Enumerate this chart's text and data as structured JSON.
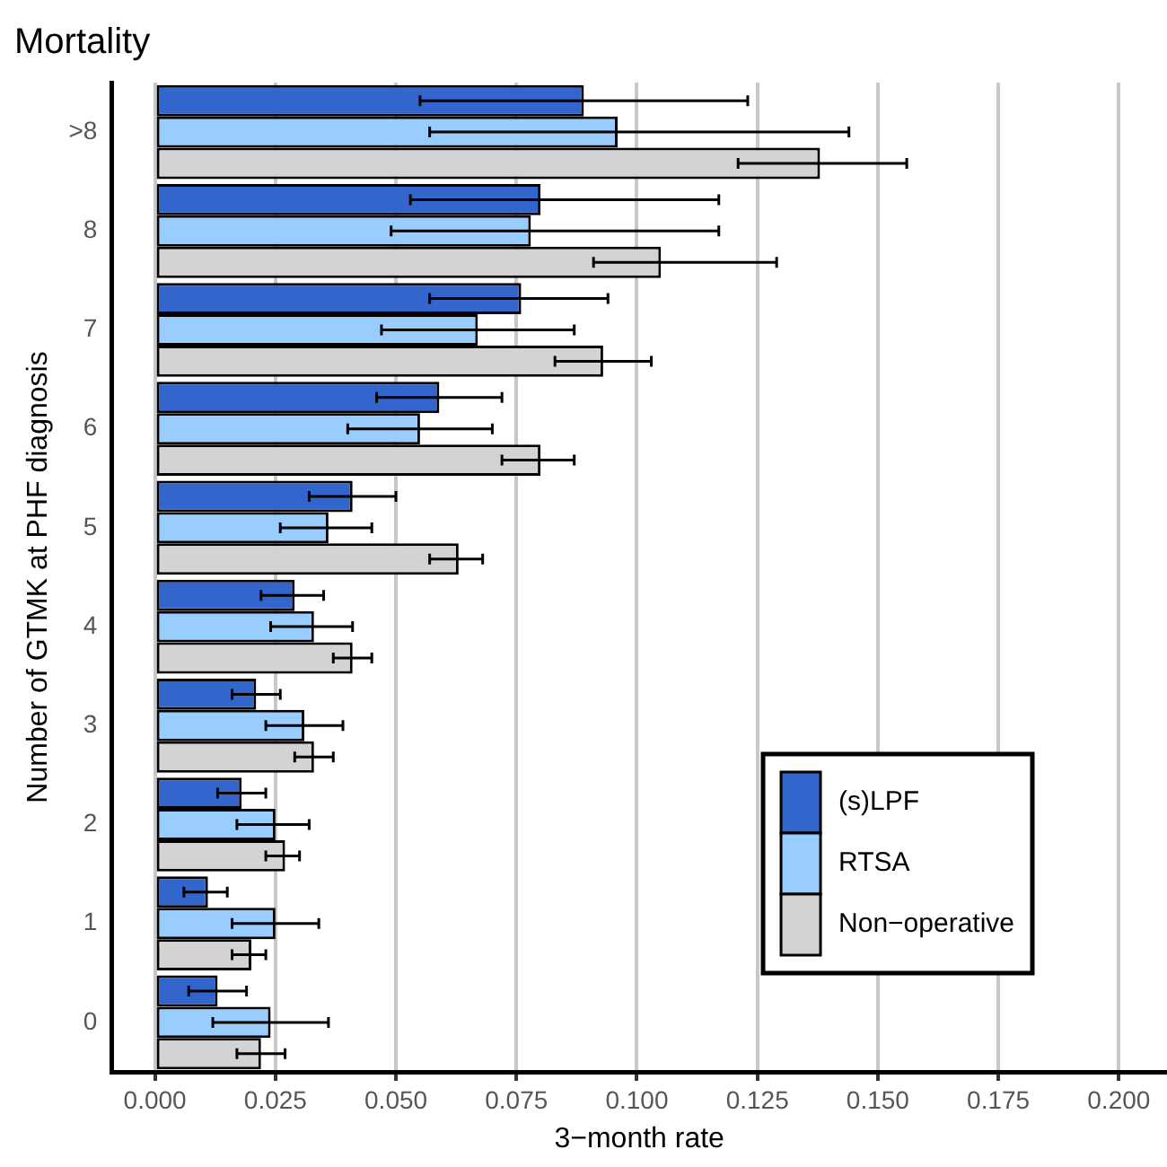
{
  "chart_data": {
    "type": "bar",
    "orientation": "horizontal",
    "title": "Mortality",
    "xlabel": "3−month rate",
    "ylabel": "Number of GTMK at PHF diagnosis",
    "categories": [
      ">8",
      "8",
      "7",
      "6",
      "5",
      "4",
      "3",
      "2",
      "1",
      "0"
    ],
    "series": [
      {
        "name": "(s)LPF",
        "color": "#3366cc",
        "values": [
          0.089,
          0.08,
          0.076,
          0.059,
          0.041,
          0.029,
          0.021,
          0.018,
          0.011,
          0.013
        ],
        "errors": [
          [
            0.055,
            0.123
          ],
          [
            0.053,
            0.117
          ],
          [
            0.057,
            0.094
          ],
          [
            0.046,
            0.072
          ],
          [
            0.032,
            0.05
          ],
          [
            0.022,
            0.035
          ],
          [
            0.016,
            0.026
          ],
          [
            0.013,
            0.023
          ],
          [
            0.006,
            0.015
          ],
          [
            0.007,
            0.019
          ]
        ]
      },
      {
        "name": "RTSA",
        "color": "#99ccff",
        "values": [
          0.096,
          0.078,
          0.067,
          0.055,
          0.036,
          0.033,
          0.031,
          0.025,
          0.025,
          0.024
        ],
        "errors": [
          [
            0.057,
            0.144
          ],
          [
            0.049,
            0.117
          ],
          [
            0.047,
            0.087
          ],
          [
            0.04,
            0.07
          ],
          [
            0.026,
            0.045
          ],
          [
            0.024,
            0.041
          ],
          [
            0.023,
            0.039
          ],
          [
            0.017,
            0.032
          ],
          [
            0.016,
            0.034
          ],
          [
            0.012,
            0.036
          ]
        ]
      },
      {
        "name": "Non−operative",
        "color": "#d3d3d3",
        "values": [
          0.138,
          0.105,
          0.093,
          0.08,
          0.063,
          0.041,
          0.033,
          0.027,
          0.02,
          0.022
        ],
        "errors": [
          [
            0.121,
            0.156
          ],
          [
            0.091,
            0.129
          ],
          [
            0.083,
            0.103
          ],
          [
            0.072,
            0.087
          ],
          [
            0.057,
            0.068
          ],
          [
            0.037,
            0.045
          ],
          [
            0.029,
            0.037
          ],
          [
            0.023,
            0.03
          ],
          [
            0.016,
            0.023
          ],
          [
            0.017,
            0.027
          ]
        ]
      }
    ],
    "xlim": [
      -0.009,
      0.21
    ],
    "xticks": [
      {
        "value": 0,
        "label": "0.000"
      },
      {
        "value": 0.025,
        "label": "0.025"
      },
      {
        "value": 0.05,
        "label": "0.050"
      },
      {
        "value": 0.075,
        "label": "0.075"
      },
      {
        "value": 0.1,
        "label": "0.100"
      },
      {
        "value": 0.125,
        "label": "0.125"
      },
      {
        "value": 0.15,
        "label": "0.150"
      },
      {
        "value": 0.175,
        "label": "0.175"
      },
      {
        "value": 0.2,
        "label": "0.200"
      }
    ],
    "grid": "x",
    "legend": "bottom right"
  }
}
